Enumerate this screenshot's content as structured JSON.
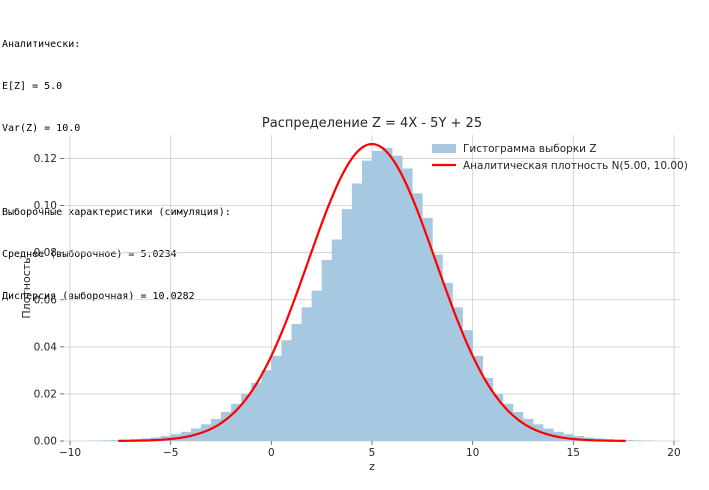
{
  "console": {
    "lines": [
      "Аналитически:",
      "E[Z] = 5.0",
      "Var(Z) = 10.0",
      "",
      "Выборочные характеристики (симуляция):",
      "Среднее (выборочное) = 5.0234",
      "Дисперсия (выборочная) = 10.0282"
    ]
  },
  "chart_data": {
    "type": "bar",
    "title": "Распределение Z = 4X - 5Y + 25",
    "xlabel": "z",
    "ylabel": "Плотность",
    "xlim": [
      -10.3,
      20.3
    ],
    "ylim": [
      0,
      0.13
    ],
    "xticks": [
      "−10",
      "−5",
      "0",
      "5",
      "10",
      "15",
      "20"
    ],
    "xtick_values": [
      -10,
      -5,
      0,
      5,
      10,
      15,
      20
    ],
    "yticks": [
      "0.00",
      "0.02",
      "0.04",
      "0.06",
      "0.08",
      "0.10",
      "0.12"
    ],
    "ytick_values": [
      0,
      0.02,
      0.04,
      0.06,
      0.08,
      0.1,
      0.12
    ],
    "grid": true,
    "legend_position": "top-right",
    "histogram": {
      "name": "Гистограмма выборки Z",
      "color": "#a6c8e0",
      "bin_width": 0.5,
      "bins": [
        [
          -9.0,
          0.0002
        ],
        [
          -8.5,
          0.0003
        ],
        [
          -8.0,
          0.0004
        ],
        [
          -7.5,
          0.0006
        ],
        [
          -7.0,
          0.0008
        ],
        [
          -6.5,
          0.0011
        ],
        [
          -6.0,
          0.0015
        ],
        [
          -5.5,
          0.0021
        ],
        [
          -5.0,
          0.0029
        ],
        [
          -4.5,
          0.0039
        ],
        [
          -4.0,
          0.0053
        ],
        [
          -3.5,
          0.0071
        ],
        [
          -3.0,
          0.0094
        ],
        [
          -2.5,
          0.0123
        ],
        [
          -2.0,
          0.0158
        ],
        [
          -1.5,
          0.0199
        ],
        [
          -1.0,
          0.0247
        ],
        [
          -0.5,
          0.0301
        ],
        [
          0.0,
          0.0362
        ],
        [
          0.5,
          0.0428
        ],
        [
          1.0,
          0.0497
        ],
        [
          1.5,
          0.0568
        ],
        [
          2.0,
          0.0639
        ],
        [
          2.5,
          0.0769
        ],
        [
          3.0,
          0.0856
        ],
        [
          3.5,
          0.0985
        ],
        [
          4.0,
          0.1094
        ],
        [
          4.5,
          0.1191
        ],
        [
          5.0,
          0.1232
        ],
        [
          5.5,
          0.1245
        ],
        [
          6.0,
          0.1212
        ],
        [
          6.5,
          0.1158
        ],
        [
          7.0,
          0.1052
        ],
        [
          7.5,
          0.0948
        ],
        [
          8.0,
          0.0792
        ],
        [
          8.5,
          0.0672
        ],
        [
          9.0,
          0.0568
        ],
        [
          9.5,
          0.0471
        ],
        [
          10.0,
          0.0362
        ],
        [
          10.5,
          0.0268
        ],
        [
          11.0,
          0.0199
        ],
        [
          11.5,
          0.0158
        ],
        [
          12.0,
          0.0123
        ],
        [
          12.5,
          0.0094
        ],
        [
          13.0,
          0.0071
        ],
        [
          13.5,
          0.0053
        ],
        [
          14.0,
          0.0039
        ],
        [
          14.5,
          0.0029
        ],
        [
          15.0,
          0.0021
        ],
        [
          15.5,
          0.0015
        ],
        [
          16.0,
          0.0011
        ],
        [
          16.5,
          0.0008
        ],
        [
          17.0,
          0.0006
        ],
        [
          17.5,
          0.0004
        ],
        [
          18.0,
          0.0003
        ],
        [
          18.5,
          0.0002
        ]
      ]
    },
    "density": {
      "name": "Аналитическая плотность N(5.00, 10.00)",
      "color": "#ff0000",
      "mean": 5.0,
      "variance": 10.0,
      "x_range": [
        -7.6,
        17.6
      ]
    }
  }
}
